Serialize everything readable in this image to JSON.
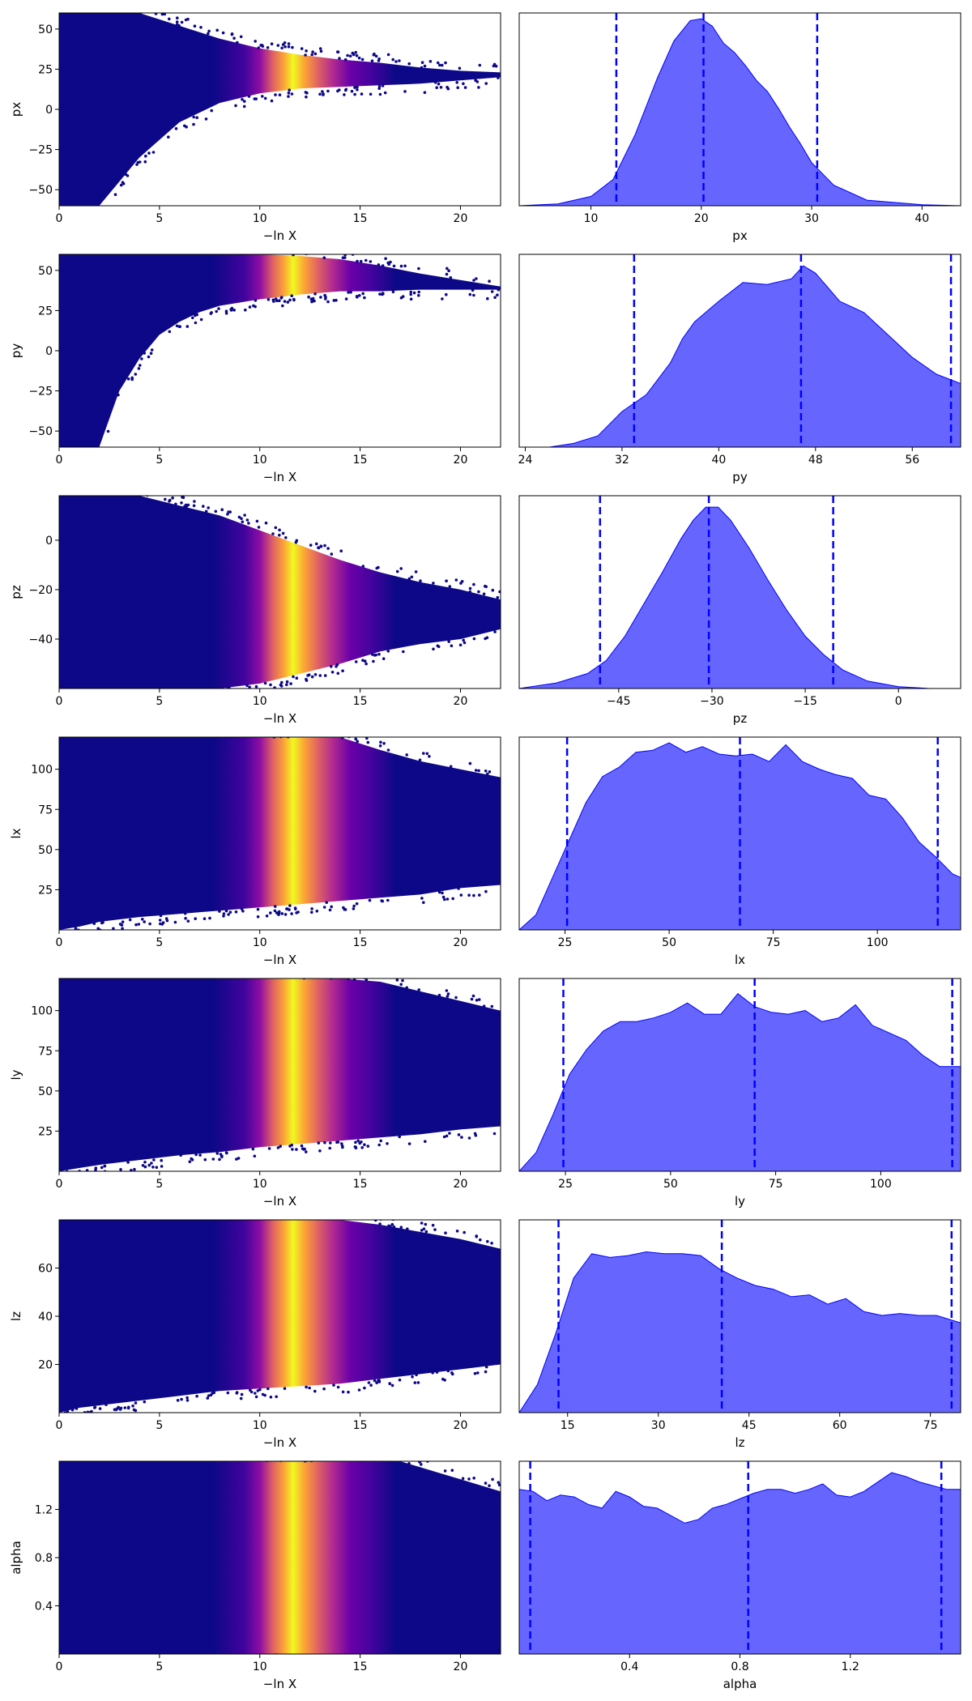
{
  "figure": {
    "colormap": [
      "#0d0887",
      "#41049d",
      "#6a00a8",
      "#8f0da4",
      "#b12a90",
      "#cc4778",
      "#e16462",
      "#f2844b",
      "#fca636",
      "#fcce25",
      "#f0f921"
    ],
    "kde_fill": "#0000ff",
    "kde_fill_opacity": 0.6,
    "quantile_line_color": "#0000ff"
  },
  "chart_data": [
    {
      "type": "scatter",
      "param": "px",
      "xlabel": "−ln X",
      "ylabel": "px",
      "xlim": [
        0,
        22
      ],
      "ylim": [
        -60,
        60
      ],
      "xticks": [
        0,
        5,
        10,
        15,
        20
      ],
      "xtick_labels": [
        "0",
        "5",
        "10",
        "15",
        "20"
      ],
      "yticks": [
        -50,
        -25,
        0,
        25,
        50
      ],
      "ytick_labels": [
        "−50",
        "−25",
        "0",
        "25",
        "50"
      ],
      "color_scale": "plasma, colored by posterior weight (peak near −ln X ≈ 11.5)",
      "envelope": {
        "x": [
          0,
          2,
          4,
          6,
          8,
          10,
          12,
          14,
          16,
          18,
          20,
          22
        ],
        "y_low": [
          -60,
          -60,
          -30,
          -8,
          4,
          10,
          13,
          14,
          15,
          16,
          18,
          20
        ],
        "y_high": [
          60,
          60,
          60,
          52,
          44,
          38,
          34,
          31,
          29,
          26,
          24,
          23
        ]
      }
    },
    {
      "type": "area",
      "param": "px",
      "xlabel": "px",
      "xlim": [
        3.5,
        43.5
      ],
      "xticks": [
        10,
        20,
        30,
        40
      ],
      "xtick_labels": [
        "10",
        "20",
        "30",
        "40"
      ],
      "x": [
        3.5,
        7,
        10,
        12,
        14,
        16,
        17.5,
        19,
        20,
        21,
        22,
        23,
        24,
        25,
        26,
        27,
        28,
        29,
        30,
        32,
        35,
        40,
        43.5
      ],
      "y": [
        0.0,
        0.01,
        0.05,
        0.14,
        0.38,
        0.68,
        0.88,
        0.99,
        1.0,
        0.96,
        0.87,
        0.82,
        0.75,
        0.67,
        0.61,
        0.52,
        0.42,
        0.33,
        0.23,
        0.11,
        0.03,
        0.005,
        0.0
      ],
      "quantiles": [
        12.3,
        20.2,
        30.5
      ]
    },
    {
      "type": "scatter",
      "param": "py",
      "xlabel": "−ln X",
      "ylabel": "py",
      "xlim": [
        0,
        22
      ],
      "ylim": [
        -60,
        60
      ],
      "xticks": [
        0,
        5,
        10,
        15,
        20
      ],
      "xtick_labels": [
        "0",
        "5",
        "10",
        "15",
        "20"
      ],
      "yticks": [
        -50,
        -25,
        0,
        25,
        50
      ],
      "ytick_labels": [
        "−50",
        "−25",
        "0",
        "25",
        "50"
      ],
      "color_scale": "plasma, colored by posterior weight (peak near −ln X ≈ 11.5)",
      "envelope": {
        "x": [
          0,
          1,
          2,
          3,
          4,
          5,
          6,
          7,
          8,
          10,
          12,
          14,
          16,
          18,
          20,
          22
        ],
        "y_low": [
          -60,
          -60,
          -60,
          -25,
          -5,
          10,
          18,
          24,
          28,
          32,
          35,
          37,
          37,
          38,
          38,
          38
        ],
        "y_high": [
          60,
          60,
          60,
          60,
          60,
          60,
          60,
          60,
          60,
          60,
          59,
          57,
          53,
          48,
          44,
          40
        ]
      }
    },
    {
      "type": "area",
      "param": "py",
      "xlabel": "py",
      "xlim": [
        23.5,
        60
      ],
      "xticks": [
        24,
        32,
        40,
        48,
        56
      ],
      "xtick_labels": [
        "24",
        "32",
        "40",
        "48",
        "56"
      ],
      "x": [
        23.5,
        26,
        28,
        30,
        32,
        34,
        36,
        37,
        38,
        40,
        42,
        44,
        46,
        47,
        48,
        50,
        52,
        54,
        56,
        58,
        60
      ],
      "y": [
        0.0,
        0.0,
        0.02,
        0.06,
        0.19,
        0.28,
        0.45,
        0.58,
        0.67,
        0.78,
        0.88,
        0.87,
        0.9,
        0.97,
        0.93,
        0.78,
        0.72,
        0.6,
        0.48,
        0.39,
        0.34
      ],
      "quantiles": [
        33.0,
        46.8,
        59.2
      ]
    },
    {
      "type": "scatter",
      "param": "pz",
      "xlabel": "−ln X",
      "ylabel": "pz",
      "xlim": [
        0,
        22
      ],
      "ylim": [
        -60,
        18
      ],
      "xticks": [
        0,
        5,
        10,
        15,
        20
      ],
      "xtick_labels": [
        "0",
        "5",
        "10",
        "15",
        "20"
      ],
      "yticks": [
        -40,
        -20,
        0
      ],
      "ytick_labels": [
        "−40",
        "−20",
        "0"
      ],
      "color_scale": "plasma, colored by posterior weight (peak near −ln X ≈ 11.5)",
      "envelope": {
        "x": [
          0,
          2,
          4,
          6,
          8,
          10,
          12,
          14,
          16,
          18,
          20,
          22
        ],
        "y_low": [
          -60,
          -60,
          -60,
          -60,
          -60,
          -58,
          -54,
          -50,
          -45,
          -42,
          -40,
          -36
        ],
        "y_high": [
          18,
          18,
          18,
          14,
          10,
          4,
          -2,
          -8,
          -13,
          -17,
          -20,
          -24
        ]
      }
    },
    {
      "type": "area",
      "param": "pz",
      "xlabel": "pz",
      "xlim": [
        -61,
        10
      ],
      "xticks": [
        -45,
        -30,
        -15,
        0
      ],
      "xtick_labels": [
        "−45",
        "−30",
        "−15",
        "0"
      ],
      "x": [
        -61,
        -55,
        -50,
        -47,
        -44,
        -41,
        -38,
        -35,
        -33,
        -31,
        -29,
        -27,
        -24,
        -21,
        -18,
        -15,
        -12,
        -9,
        -5,
        0,
        5,
        10
      ],
      "y": [
        0.0,
        0.03,
        0.08,
        0.15,
        0.28,
        0.45,
        0.62,
        0.8,
        0.9,
        0.97,
        0.97,
        0.9,
        0.75,
        0.58,
        0.42,
        0.28,
        0.18,
        0.1,
        0.04,
        0.01,
        0.0,
        0.0
      ],
      "quantiles": [
        -48.0,
        -30.5,
        -10.5
      ]
    },
    {
      "type": "scatter",
      "param": "lx",
      "xlabel": "−ln X",
      "ylabel": "lx",
      "xlim": [
        0,
        22
      ],
      "ylim": [
        0,
        120
      ],
      "xticks": [
        0,
        5,
        10,
        15,
        20
      ],
      "xtick_labels": [
        "0",
        "5",
        "10",
        "15",
        "20"
      ],
      "yticks": [
        25,
        50,
        75,
        100
      ],
      "ytick_labels": [
        "25",
        "50",
        "75",
        "100"
      ],
      "color_scale": "plasma, colored by posterior weight (peak near −ln X ≈ 11.5)",
      "envelope": {
        "x": [
          0,
          1,
          2,
          4,
          6,
          8,
          10,
          12,
          14,
          16,
          18,
          20,
          22
        ],
        "y_low": [
          0,
          2,
          5,
          8,
          10,
          12,
          14,
          16,
          18,
          20,
          22,
          26,
          28
        ],
        "y_high": [
          120,
          120,
          120,
          120,
          120,
          120,
          120,
          120,
          120,
          112,
          105,
          100,
          95
        ]
      }
    },
    {
      "type": "area",
      "param": "lx",
      "xlabel": "lx",
      "xlim": [
        14,
        120
      ],
      "xticks": [
        25,
        50,
        75,
        100
      ],
      "xtick_labels": [
        "25",
        "50",
        "75",
        "100"
      ],
      "x": [
        14,
        18,
        22,
        26,
        30,
        34,
        38,
        42,
        46,
        50,
        54,
        58,
        62,
        66,
        70,
        74,
        78,
        82,
        86,
        90,
        94,
        98,
        102,
        106,
        110,
        114,
        118,
        120
      ],
      "y": [
        0.0,
        0.08,
        0.28,
        0.48,
        0.68,
        0.82,
        0.87,
        0.95,
        0.96,
        1.0,
        0.95,
        0.98,
        0.94,
        0.93,
        0.94,
        0.9,
        0.99,
        0.9,
        0.86,
        0.83,
        0.81,
        0.72,
        0.7,
        0.6,
        0.47,
        0.39,
        0.3,
        0.28
      ],
      "quantiles": [
        25.5,
        67.0,
        114.5
      ]
    },
    {
      "type": "scatter",
      "param": "ly",
      "xlabel": "−ln X",
      "ylabel": "ly",
      "xlim": [
        0,
        22
      ],
      "ylim": [
        0,
        120
      ],
      "xticks": [
        0,
        5,
        10,
        15,
        20
      ],
      "xtick_labels": [
        "0",
        "5",
        "10",
        "15",
        "20"
      ],
      "yticks": [
        25,
        50,
        75,
        100
      ],
      "ytick_labels": [
        "25",
        "50",
        "75",
        "100"
      ],
      "color_scale": "plasma, colored by posterior weight (peak near −ln X ≈ 11.5)",
      "envelope": {
        "x": [
          0,
          1,
          2,
          4,
          6,
          8,
          10,
          12,
          14,
          16,
          18,
          20,
          22
        ],
        "y_low": [
          0,
          2,
          4,
          7,
          10,
          12,
          15,
          17,
          19,
          21,
          23,
          26,
          28
        ],
        "y_high": [
          120,
          120,
          120,
          120,
          120,
          120,
          120,
          120,
          120,
          118,
          112,
          106,
          100
        ]
      }
    },
    {
      "type": "area",
      "param": "ly",
      "xlabel": "ly",
      "xlim": [
        14,
        119
      ],
      "xticks": [
        25,
        50,
        75,
        100
      ],
      "xtick_labels": [
        "25",
        "50",
        "75",
        "100"
      ],
      "x": [
        14,
        18,
        22,
        26,
        30,
        34,
        38,
        42,
        46,
        50,
        54,
        58,
        62,
        66,
        70,
        74,
        78,
        82,
        86,
        90,
        94,
        98,
        102,
        106,
        110,
        114,
        119
      ],
      "y": [
        0.0,
        0.1,
        0.3,
        0.52,
        0.65,
        0.75,
        0.8,
        0.8,
        0.82,
        0.85,
        0.9,
        0.84,
        0.84,
        0.95,
        0.88,
        0.85,
        0.84,
        0.86,
        0.8,
        0.82,
        0.89,
        0.78,
        0.74,
        0.7,
        0.62,
        0.56,
        0.56
      ],
      "quantiles": [
        24.5,
        70.0,
        117.0
      ]
    },
    {
      "type": "scatter",
      "param": "lz",
      "xlabel": "−ln X",
      "ylabel": "lz",
      "xlim": [
        0,
        22
      ],
      "ylim": [
        0,
        80
      ],
      "xticks": [
        0,
        5,
        10,
        15,
        20
      ],
      "xtick_labels": [
        "0",
        "5",
        "10",
        "15",
        "20"
      ],
      "yticks": [
        20,
        40,
        60
      ],
      "ytick_labels": [
        "20",
        "40",
        "60"
      ],
      "color_scale": "plasma, colored by posterior weight (peak near −ln X ≈ 11.5)",
      "envelope": {
        "x": [
          0,
          1,
          2,
          4,
          6,
          8,
          10,
          12,
          14,
          16,
          18,
          20,
          22
        ],
        "y_low": [
          0,
          2,
          3,
          5,
          7,
          9,
          10,
          11,
          12,
          14,
          16,
          18,
          20
        ],
        "y_high": [
          80,
          80,
          80,
          80,
          80,
          80,
          80,
          80,
          80,
          78,
          75,
          72,
          68
        ]
      }
    },
    {
      "type": "area",
      "param": "lz",
      "xlabel": "lz",
      "xlim": [
        7,
        80
      ],
      "xticks": [
        15,
        30,
        45,
        60,
        75
      ],
      "xtick_labels": [
        "15",
        "30",
        "45",
        "60",
        "75"
      ],
      "x": [
        7,
        10,
        13,
        16,
        19,
        22,
        25,
        28,
        31,
        34,
        37,
        40,
        43,
        46,
        49,
        52,
        55,
        58,
        61,
        64,
        67,
        70,
        73,
        76,
        80
      ],
      "y": [
        0.0,
        0.15,
        0.42,
        0.72,
        0.85,
        0.83,
        0.84,
        0.86,
        0.85,
        0.85,
        0.84,
        0.77,
        0.72,
        0.68,
        0.66,
        0.62,
        0.63,
        0.58,
        0.61,
        0.54,
        0.52,
        0.53,
        0.52,
        0.52,
        0.48
      ],
      "quantiles": [
        13.5,
        40.5,
        78.5
      ]
    },
    {
      "type": "scatter",
      "param": "alpha",
      "xlabel": "−ln X",
      "ylabel": "alpha",
      "xlim": [
        0,
        22
      ],
      "ylim": [
        0,
        1.6
      ],
      "xticks": [
        0,
        5,
        10,
        15,
        20
      ],
      "xtick_labels": [
        "0",
        "5",
        "10",
        "15",
        "20"
      ],
      "yticks": [
        0.4,
        0.8,
        1.2
      ],
      "ytick_labels": [
        "0.4",
        "0.8",
        "1.2"
      ],
      "color_scale": "plasma, colored by posterior weight (peak near −ln X ≈ 11.5)",
      "envelope": {
        "x": [
          0,
          4,
          8,
          10,
          12,
          14,
          16,
          17,
          18,
          19,
          20,
          21,
          22
        ],
        "y_low": [
          0,
          0,
          0,
          0,
          0,
          0,
          0,
          0,
          0,
          0,
          0,
          0,
          0
        ],
        "y_high": [
          1.6,
          1.6,
          1.6,
          1.6,
          1.6,
          1.6,
          1.6,
          1.6,
          1.55,
          1.5,
          1.45,
          1.4,
          1.35
        ]
      }
    },
    {
      "type": "area",
      "param": "alpha",
      "xlabel": "alpha",
      "xlim": [
        0,
        1.6
      ],
      "xticks": [
        0.4,
        0.8,
        1.2
      ],
      "xtick_labels": [
        "0.4",
        "0.8",
        "1.2"
      ],
      "x": [
        0,
        0.05,
        0.1,
        0.15,
        0.2,
        0.25,
        0.3,
        0.35,
        0.4,
        0.45,
        0.5,
        0.55,
        0.6,
        0.65,
        0.7,
        0.75,
        0.8,
        0.85,
        0.9,
        0.95,
        1.0,
        1.05,
        1.1,
        1.15,
        1.2,
        1.25,
        1.3,
        1.35,
        1.4,
        1.45,
        1.5,
        1.55,
        1.6
      ],
      "y": [
        0.88,
        0.87,
        0.82,
        0.85,
        0.84,
        0.8,
        0.78,
        0.87,
        0.84,
        0.79,
        0.78,
        0.74,
        0.7,
        0.72,
        0.78,
        0.8,
        0.83,
        0.86,
        0.88,
        0.88,
        0.86,
        0.88,
        0.91,
        0.85,
        0.84,
        0.87,
        0.92,
        0.97,
        0.95,
        0.92,
        0.9,
        0.88,
        0.88
      ],
      "quantiles": [
        0.04,
        0.83,
        1.53
      ]
    }
  ]
}
